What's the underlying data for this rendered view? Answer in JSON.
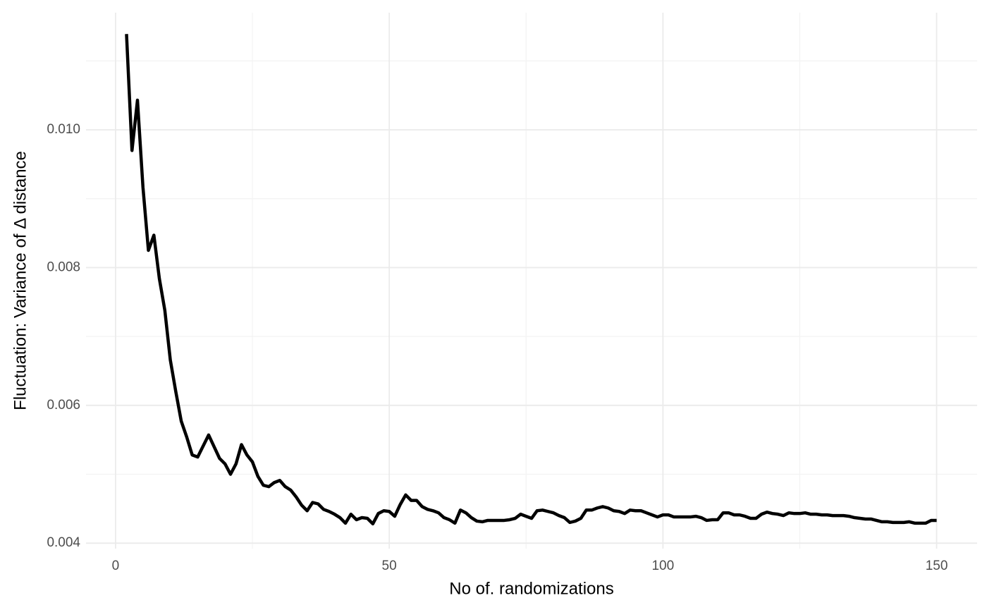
{
  "chart_data": {
    "type": "line",
    "x_label": "No of. randomizations",
    "y_label": "Fluctuation: Variance of Δ distance",
    "color": "#000000",
    "grid": true,
    "xlim": [
      -5.4,
      157.4
    ],
    "xticks": [
      0,
      50,
      100,
      150
    ],
    "ylim": [
      0.00392,
      0.0117
    ],
    "yticks": [
      0.004,
      0.006,
      0.008,
      {
        "value": 0.01,
        "label": "0.010"
      }
    ],
    "x": [
      2,
      3,
      4,
      5,
      6,
      7,
      8,
      9,
      10,
      11,
      12,
      13,
      14,
      15,
      16,
      17,
      18,
      19,
      20,
      21,
      22,
      23,
      24,
      25,
      26,
      27,
      28,
      29,
      30,
      31,
      32,
      33,
      34,
      35,
      36,
      37,
      38,
      39,
      40,
      41,
      42,
      43,
      44,
      45,
      46,
      47,
      48,
      49,
      50,
      51,
      52,
      53,
      54,
      55,
      56,
      57,
      58,
      59,
      60,
      61,
      62,
      63,
      64,
      65,
      66,
      67,
      68,
      69,
      70,
      71,
      72,
      73,
      74,
      75,
      76,
      77,
      78,
      79,
      80,
      81,
      82,
      83,
      84,
      85,
      86,
      87,
      88,
      89,
      90,
      91,
      92,
      93,
      94,
      95,
      96,
      97,
      98,
      99,
      100,
      101,
      102,
      103,
      104,
      105,
      106,
      107,
      108,
      109,
      110,
      111,
      112,
      113,
      114,
      115,
      116,
      117,
      118,
      119,
      120,
      121,
      122,
      123,
      124,
      125,
      126,
      127,
      128,
      129,
      130,
      131,
      132,
      133,
      134,
      135,
      136,
      137,
      138,
      139,
      140,
      141,
      142,
      143,
      144,
      145,
      146,
      147,
      148,
      149,
      150
    ],
    "values": [
      0.01139,
      0.0097,
      0.01043,
      0.00917,
      0.00825,
      0.00847,
      0.00784,
      0.00738,
      0.00666,
      0.0062,
      0.00577,
      0.00554,
      0.00528,
      0.00525,
      0.00541,
      0.00557,
      0.0054,
      0.00523,
      0.00515,
      0.005,
      0.00515,
      0.00543,
      0.00528,
      0.00518,
      0.00497,
      0.00484,
      0.00482,
      0.00488,
      0.00491,
      0.00482,
      0.00477,
      0.00467,
      0.00455,
      0.00447,
      0.00459,
      0.00457,
      0.00449,
      0.00446,
      0.00442,
      0.00437,
      0.00429,
      0.00442,
      0.00434,
      0.00437,
      0.00436,
      0.00428,
      0.00443,
      0.00447,
      0.00446,
      0.00439,
      0.00456,
      0.0047,
      0.00462,
      0.00462,
      0.00453,
      0.00449,
      0.00447,
      0.00444,
      0.00437,
      0.00434,
      0.00429,
      0.00448,
      0.00444,
      0.00437,
      0.00432,
      0.00431,
      0.00433,
      0.00433,
      0.00433,
      0.00433,
      0.00434,
      0.00436,
      0.00442,
      0.00439,
      0.00436,
      0.00447,
      0.00448,
      0.00446,
      0.00444,
      0.0044,
      0.00437,
      0.0043,
      0.00432,
      0.00436,
      0.00448,
      0.00448,
      0.00451,
      0.00453,
      0.00451,
      0.00447,
      0.00446,
      0.00443,
      0.00448,
      0.00447,
      0.00447,
      0.00444,
      0.00441,
      0.00438,
      0.00441,
      0.00441,
      0.00438,
      0.00438,
      0.00438,
      0.00438,
      0.00439,
      0.00437,
      0.00433,
      0.00434,
      0.00434,
      0.00444,
      0.00444,
      0.00441,
      0.00441,
      0.00439,
      0.00436,
      0.00436,
      0.00442,
      0.00445,
      0.00443,
      0.00442,
      0.0044,
      0.00444,
      0.00443,
      0.00443,
      0.00444,
      0.00442,
      0.00442,
      0.00441,
      0.00441,
      0.0044,
      0.0044,
      0.0044,
      0.00439,
      0.00437,
      0.00436,
      0.00435,
      0.00435,
      0.00433,
      0.00431,
      0.00431,
      0.0043,
      0.0043,
      0.0043,
      0.00431,
      0.00429,
      0.00429,
      0.00429,
      0.00433,
      0.00433
    ]
  }
}
